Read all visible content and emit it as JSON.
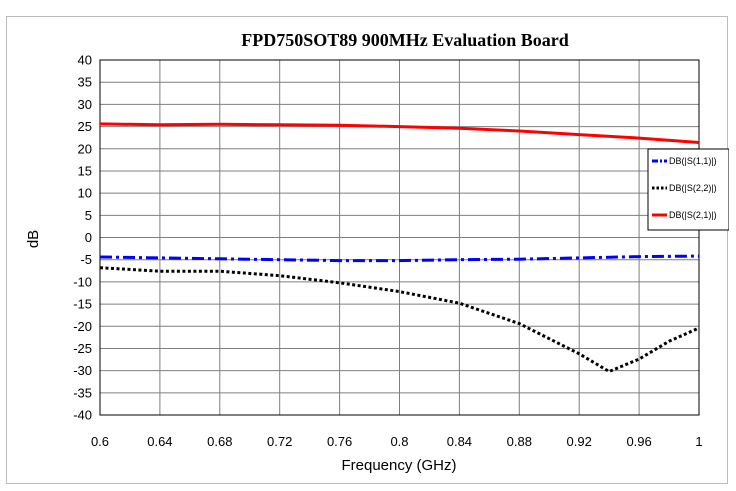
{
  "chart_data": {
    "type": "line",
    "title": "FPD750SOT89 900MHz Evaluation Board",
    "xlabel": "Frequency (GHz)",
    "ylabel": "dB",
    "xlim": [
      0.6,
      1.0
    ],
    "ylim": [
      -40,
      40
    ],
    "x_ticks": [
      "0.6",
      "0.64",
      "0.68",
      "0.72",
      "0.76",
      "0.8",
      "0.84",
      "0.88",
      "0.92",
      "0.96",
      "1"
    ],
    "y_ticks": [
      "40",
      "35",
      "30",
      "25",
      "20",
      "15",
      "10",
      "5",
      "0",
      "-5",
      "-10",
      "-15",
      "-20",
      "-25",
      "-30",
      "-35",
      "-40"
    ],
    "grid": true,
    "legend_position": "right",
    "series": [
      {
        "name": "DB(|S(1,1)|)",
        "color": "#0000ff",
        "style": "dash-dot",
        "points": [
          [
            0.6,
            -4.4
          ],
          [
            0.64,
            -4.6
          ],
          [
            0.68,
            -4.8
          ],
          [
            0.72,
            -5.0
          ],
          [
            0.76,
            -5.2
          ],
          [
            0.8,
            -5.2
          ],
          [
            0.84,
            -5.0
          ],
          [
            0.88,
            -4.9
          ],
          [
            0.92,
            -4.6
          ],
          [
            0.96,
            -4.3
          ],
          [
            1.0,
            -4.2
          ]
        ]
      },
      {
        "name": "DB(|S(2,2)|)",
        "color": "#000000",
        "style": "dotted",
        "points": [
          [
            0.6,
            -6.8
          ],
          [
            0.64,
            -7.6
          ],
          [
            0.68,
            -7.6
          ],
          [
            0.72,
            -8.6
          ],
          [
            0.76,
            -10.2
          ],
          [
            0.8,
            -12.2
          ],
          [
            0.84,
            -14.8
          ],
          [
            0.88,
            -19.4
          ],
          [
            0.92,
            -26.2
          ],
          [
            0.94,
            -30.2
          ],
          [
            0.96,
            -27.4
          ],
          [
            0.98,
            -23.4
          ],
          [
            1.0,
            -20.4
          ]
        ]
      },
      {
        "name": "DB(|S(2,1)|)",
        "color": "#ff0000",
        "style": "solid",
        "points": [
          [
            0.6,
            25.6
          ],
          [
            0.64,
            25.4
          ],
          [
            0.68,
            25.5
          ],
          [
            0.72,
            25.4
          ],
          [
            0.76,
            25.3
          ],
          [
            0.8,
            25.0
          ],
          [
            0.84,
            24.6
          ],
          [
            0.88,
            24.0
          ],
          [
            0.92,
            23.2
          ],
          [
            0.96,
            22.4
          ],
          [
            1.0,
            21.4
          ]
        ]
      }
    ]
  }
}
